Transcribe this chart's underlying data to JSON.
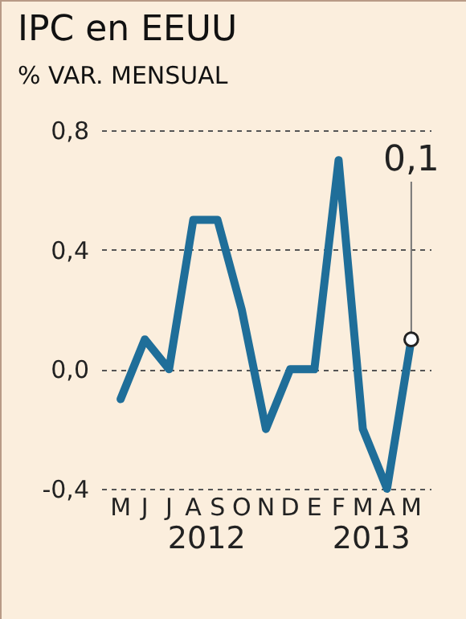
{
  "chart_data": {
    "type": "line",
    "title": "IPC en EEUU",
    "subtitle": "% VAR. MENSUAL",
    "categories": [
      "M",
      "J",
      "J",
      "A",
      "S",
      "O",
      "N",
      "D",
      "E",
      "F",
      "M",
      "A",
      "M"
    ],
    "series": [
      {
        "color": "#1f6e99",
        "values": [
          -0.1,
          0.1,
          0.0,
          0.5,
          0.5,
          0.2,
          -0.2,
          0.0,
          0.0,
          0.7,
          -0.2,
          -0.4,
          0.1
        ],
        "value_labels": [
          null,
          null,
          null,
          null,
          null,
          null,
          null,
          null,
          null,
          null,
          null,
          null,
          "0,1"
        ]
      }
    ],
    "ylim": [
      -0.4,
      0.8
    ],
    "yticks": [
      {
        "value": -0.4,
        "label": "-0,4"
      },
      {
        "value": 0,
        "label": "0,0"
      },
      {
        "value": 0.4,
        "label": "0,4"
      },
      {
        "value": 0.8,
        "label": "0,8"
      }
    ],
    "grid": "y",
    "annotations": [
      "2012",
      "2013"
    ]
  }
}
